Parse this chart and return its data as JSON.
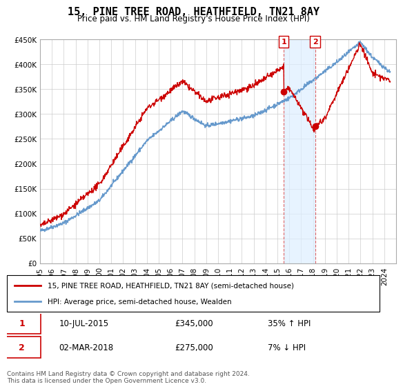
{
  "title": "15, PINE TREE ROAD, HEATHFIELD, TN21 8AY",
  "subtitle": "Price paid vs. HM Land Registry's House Price Index (HPI)",
  "legend_line1": "15, PINE TREE ROAD, HEATHFIELD, TN21 8AY (semi-detached house)",
  "legend_line2": "HPI: Average price, semi-detached house, Wealden",
  "footnote": "Contains HM Land Registry data © Crown copyright and database right 2024.\nThis data is licensed under the Open Government Licence v3.0.",
  "sale1_label": "1",
  "sale1_date": "10-JUL-2015",
  "sale1_price": "£345,000",
  "sale1_hpi": "35% ↑ HPI",
  "sale2_label": "2",
  "sale2_date": "02-MAR-2018",
  "sale2_price": "£275,000",
  "sale2_hpi": "7% ↓ HPI",
  "sale1_year": 2015.53,
  "sale1_value": 345000,
  "sale2_year": 2018.17,
  "sale2_value": 275000,
  "ylim": [
    0,
    450000
  ],
  "xlim_start": 1995.0,
  "xlim_end": 2025.0,
  "red_color": "#cc0000",
  "blue_color": "#6699cc",
  "bg_color": "#ffffff",
  "grid_color": "#cccccc",
  "shade_color": "#ddeeff"
}
